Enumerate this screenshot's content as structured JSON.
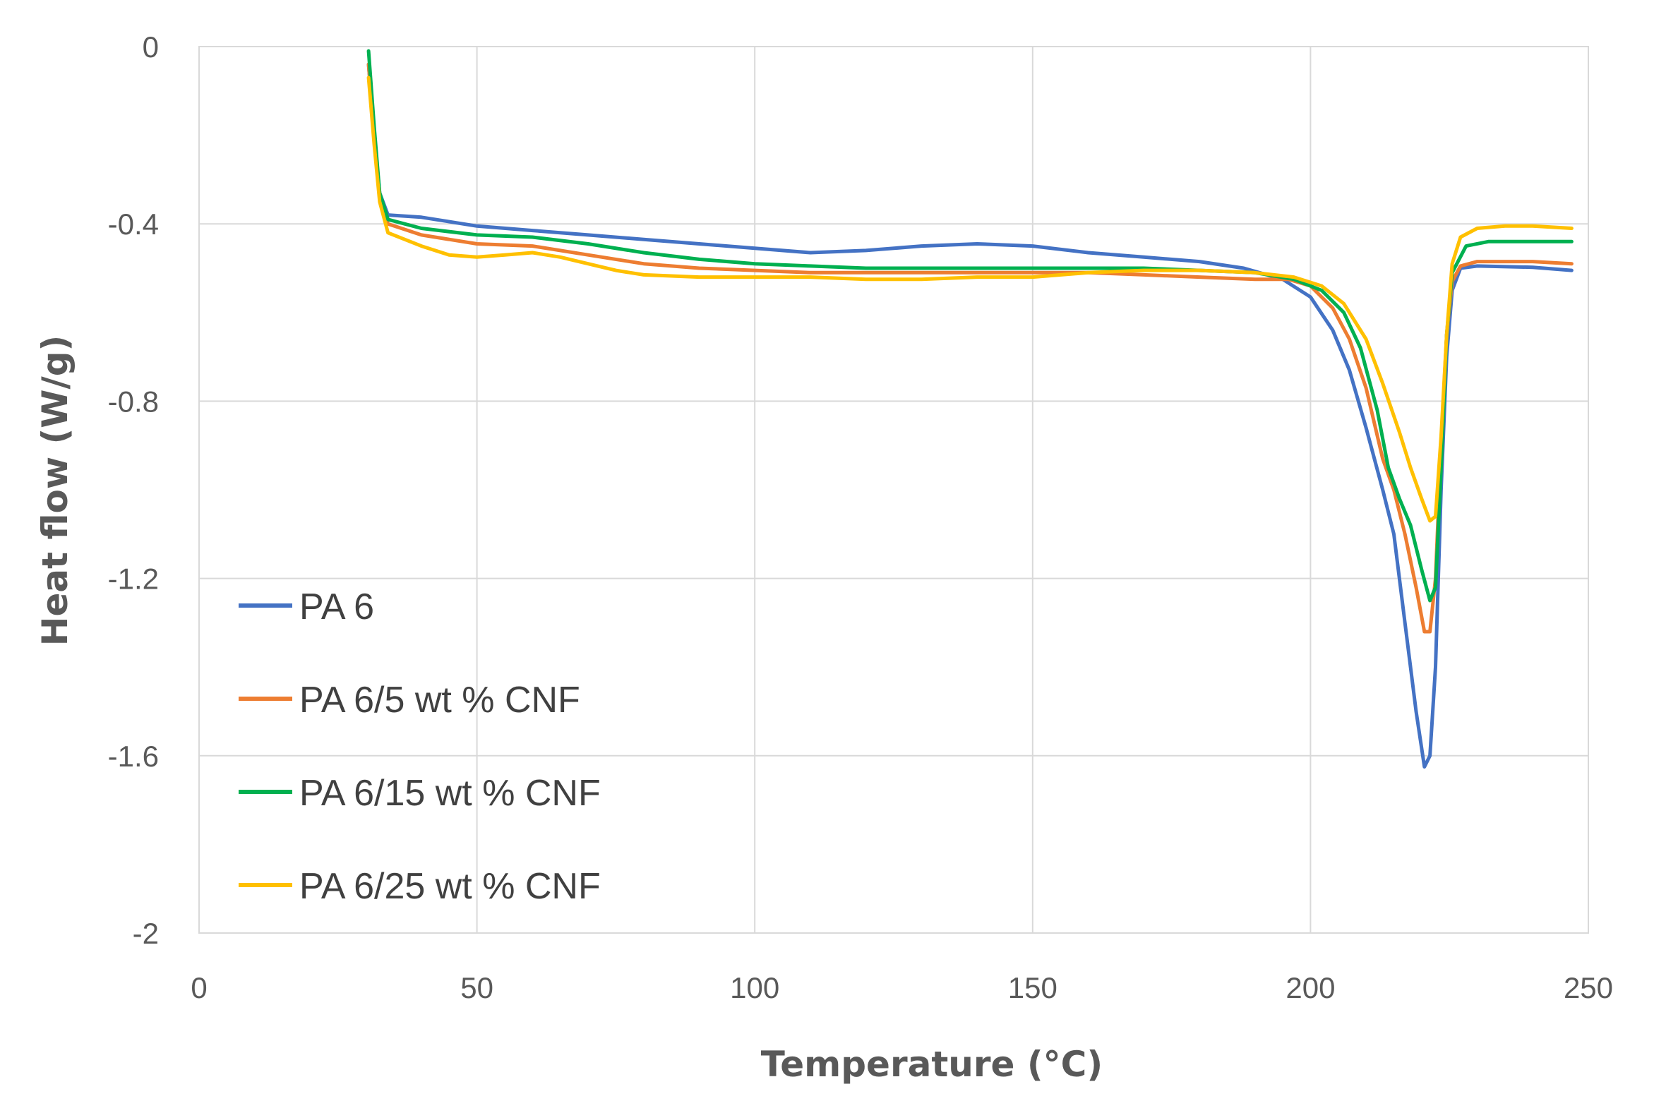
{
  "chart_data": {
    "type": "line",
    "title": "",
    "xlabel": "Temperature (°C)",
    "ylabel": "Heat flow (W/g)",
    "xlim": [
      0,
      250
    ],
    "ylim": [
      -2,
      0
    ],
    "x_ticks": [
      0,
      50,
      100,
      150,
      200,
      250
    ],
    "x_tick_labels": [
      "0",
      "50",
      "100",
      "150",
      "200",
      "250"
    ],
    "y_ticks": [
      0,
      -0.4,
      -0.8,
      -1.2,
      -1.6,
      -2
    ],
    "y_tick_labels": [
      "0",
      "-0.4",
      "-0.8",
      "-1.2",
      "-1.6",
      "-2"
    ],
    "grid": true,
    "legend_position": "lower-left",
    "series": [
      {
        "name": "PA 6",
        "color": "#4472C4",
        "points": [
          [
            30.5,
            -0.04
          ],
          [
            31.5,
            -0.2
          ],
          [
            32.5,
            -0.33
          ],
          [
            34,
            -0.38
          ],
          [
            40,
            -0.385
          ],
          [
            50,
            -0.405
          ],
          [
            60,
            -0.415
          ],
          [
            70,
            -0.425
          ],
          [
            80,
            -0.435
          ],
          [
            90,
            -0.445
          ],
          [
            100,
            -0.455
          ],
          [
            110,
            -0.465
          ],
          [
            120,
            -0.46
          ],
          [
            130,
            -0.45
          ],
          [
            140,
            -0.445
          ],
          [
            150,
            -0.45
          ],
          [
            160,
            -0.465
          ],
          [
            170,
            -0.475
          ],
          [
            180,
            -0.485
          ],
          [
            188,
            -0.5
          ],
          [
            195,
            -0.525
          ],
          [
            200,
            -0.565
          ],
          [
            204,
            -0.64
          ],
          [
            207,
            -0.73
          ],
          [
            210,
            -0.86
          ],
          [
            213,
            -1.0
          ],
          [
            215,
            -1.1
          ],
          [
            217,
            -1.3
          ],
          [
            219,
            -1.5
          ],
          [
            220.5,
            -1.625
          ],
          [
            221.5,
            -1.6
          ],
          [
            222.5,
            -1.4
          ],
          [
            223.5,
            -1.0
          ],
          [
            224.5,
            -0.7
          ],
          [
            225.5,
            -0.55
          ],
          [
            227,
            -0.5
          ],
          [
            230,
            -0.495
          ],
          [
            240,
            -0.498
          ],
          [
            247,
            -0.505
          ]
        ]
      },
      {
        "name": "PA 6/5 wt % CNF",
        "color": "#ED7D31",
        "points": [
          [
            30.5,
            -0.04
          ],
          [
            31.5,
            -0.2
          ],
          [
            32.5,
            -0.34
          ],
          [
            34,
            -0.4
          ],
          [
            40,
            -0.425
          ],
          [
            50,
            -0.445
          ],
          [
            60,
            -0.45
          ],
          [
            70,
            -0.47
          ],
          [
            80,
            -0.49
          ],
          [
            90,
            -0.5
          ],
          [
            100,
            -0.505
          ],
          [
            110,
            -0.51
          ],
          [
            120,
            -0.51
          ],
          [
            130,
            -0.51
          ],
          [
            140,
            -0.51
          ],
          [
            150,
            -0.51
          ],
          [
            160,
            -0.51
          ],
          [
            170,
            -0.515
          ],
          [
            180,
            -0.52
          ],
          [
            190,
            -0.525
          ],
          [
            196,
            -0.525
          ],
          [
            200,
            -0.54
          ],
          [
            204,
            -0.59
          ],
          [
            207,
            -0.66
          ],
          [
            210,
            -0.77
          ],
          [
            213,
            -0.93
          ],
          [
            215,
            -1.0
          ],
          [
            217,
            -1.1
          ],
          [
            219,
            -1.22
          ],
          [
            220.5,
            -1.32
          ],
          [
            221.5,
            -1.32
          ],
          [
            222.5,
            -1.2
          ],
          [
            223.5,
            -0.9
          ],
          [
            224.5,
            -0.65
          ],
          [
            225.5,
            -0.53
          ],
          [
            227,
            -0.495
          ],
          [
            230,
            -0.485
          ],
          [
            240,
            -0.485
          ],
          [
            247,
            -0.49
          ]
        ]
      },
      {
        "name": "PA 6/15 wt % CNF",
        "color": "#00B050",
        "points": [
          [
            30.5,
            -0.01
          ],
          [
            31.5,
            -0.18
          ],
          [
            32.5,
            -0.33
          ],
          [
            34,
            -0.39
          ],
          [
            40,
            -0.41
          ],
          [
            50,
            -0.425
          ],
          [
            60,
            -0.43
          ],
          [
            70,
            -0.445
          ],
          [
            80,
            -0.465
          ],
          [
            90,
            -0.48
          ],
          [
            100,
            -0.49
          ],
          [
            110,
            -0.495
          ],
          [
            120,
            -0.5
          ],
          [
            130,
            -0.5
          ],
          [
            140,
            -0.5
          ],
          [
            150,
            -0.5
          ],
          [
            160,
            -0.5
          ],
          [
            170,
            -0.5
          ],
          [
            180,
            -0.505
          ],
          [
            190,
            -0.51
          ],
          [
            197,
            -0.525
          ],
          [
            202,
            -0.55
          ],
          [
            206,
            -0.6
          ],
          [
            209,
            -0.68
          ],
          [
            212,
            -0.82
          ],
          [
            214,
            -0.95
          ],
          [
            216,
            -1.02
          ],
          [
            218,
            -1.08
          ],
          [
            220,
            -1.18
          ],
          [
            221.5,
            -1.25
          ],
          [
            222.5,
            -1.22
          ],
          [
            223.5,
            -0.95
          ],
          [
            224.5,
            -0.65
          ],
          [
            225.5,
            -0.51
          ],
          [
            228,
            -0.45
          ],
          [
            232,
            -0.44
          ],
          [
            240,
            -0.44
          ],
          [
            247,
            -0.44
          ]
        ]
      },
      {
        "name": "PA 6/25 wt % CNF",
        "color": "#FFC000",
        "points": [
          [
            30.5,
            -0.07
          ],
          [
            31.5,
            -0.22
          ],
          [
            32.5,
            -0.35
          ],
          [
            34,
            -0.42
          ],
          [
            40,
            -0.45
          ],
          [
            45,
            -0.47
          ],
          [
            50,
            -0.475
          ],
          [
            55,
            -0.47
          ],
          [
            60,
            -0.465
          ],
          [
            65,
            -0.475
          ],
          [
            70,
            -0.49
          ],
          [
            75,
            -0.505
          ],
          [
            80,
            -0.515
          ],
          [
            90,
            -0.52
          ],
          [
            100,
            -0.52
          ],
          [
            110,
            -0.52
          ],
          [
            120,
            -0.525
          ],
          [
            130,
            -0.525
          ],
          [
            140,
            -0.52
          ],
          [
            150,
            -0.52
          ],
          [
            160,
            -0.51
          ],
          [
            170,
            -0.505
          ],
          [
            180,
            -0.505
          ],
          [
            190,
            -0.51
          ],
          [
            197,
            -0.52
          ],
          [
            202,
            -0.54
          ],
          [
            206,
            -0.58
          ],
          [
            210,
            -0.66
          ],
          [
            213,
            -0.76
          ],
          [
            216,
            -0.87
          ],
          [
            218,
            -0.95
          ],
          [
            220,
            -1.02
          ],
          [
            221.5,
            -1.07
          ],
          [
            222.5,
            -1.06
          ],
          [
            223.5,
            -0.88
          ],
          [
            224.5,
            -0.65
          ],
          [
            225.5,
            -0.49
          ],
          [
            227,
            -0.43
          ],
          [
            230,
            -0.41
          ],
          [
            235,
            -0.405
          ],
          [
            240,
            -0.405
          ],
          [
            247,
            -0.41
          ]
        ]
      }
    ]
  }
}
